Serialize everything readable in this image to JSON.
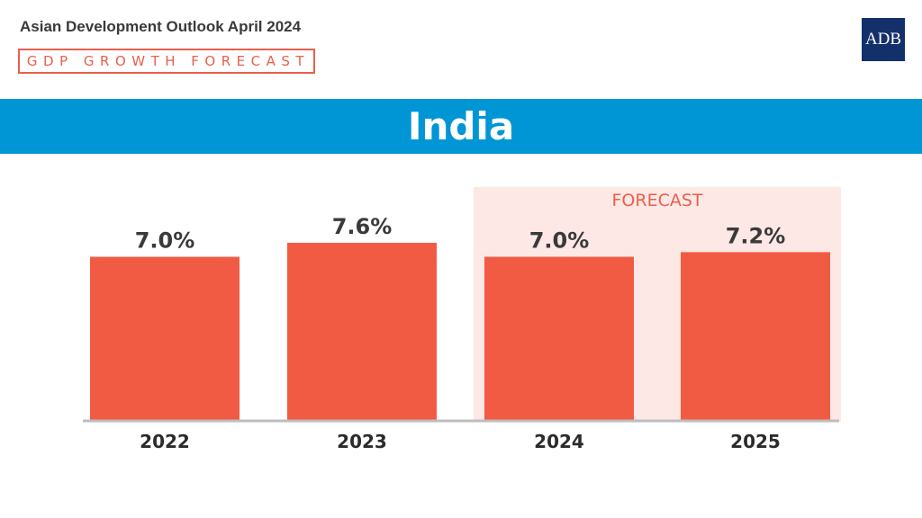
{
  "header": {
    "publication": "Asian Development Outlook April 2024",
    "subtitle": "GDP GROWTH FORECAST",
    "logo_text": "ADB"
  },
  "banner": {
    "title": "India"
  },
  "colors": {
    "bar": "#f25b43",
    "forecast_shade": "#fde8e6",
    "banner": "#0096d6",
    "logo": "#13306b",
    "accent": "#e8604c"
  },
  "chart_data": {
    "type": "bar",
    "categories": [
      "2022",
      "2023",
      "2024",
      "2025"
    ],
    "values": [
      7.0,
      7.6,
      7.0,
      7.2
    ],
    "value_labels": [
      "7.0%",
      "7.6%",
      "7.0%",
      "7.2%"
    ],
    "forecast_label": "FORECAST",
    "forecast_categories": [
      "2024",
      "2025"
    ],
    "ylim": [
      0,
      7.6
    ],
    "grid": false,
    "legend": "none"
  }
}
